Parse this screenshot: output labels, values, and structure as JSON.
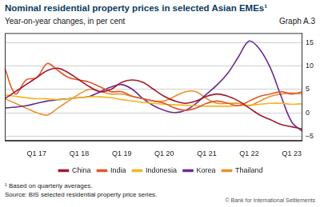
{
  "chart_data": {
    "type": "line",
    "title": "Nominal residential property prices in selected Asian EMEs¹",
    "subtitle": "Year-on-year changes, in per cent",
    "annotations": [
      "Graph A.3",
      "¹ Based on quarterly averages.",
      "Source: BIS selected residential property price series.",
      "© Bank for International Settlements"
    ],
    "categories": [
      null,
      null,
      null,
      "Q1 17",
      null,
      null,
      null,
      "Q1 18",
      null,
      null,
      null,
      "Q1 19",
      null,
      null,
      null,
      "Q1 20",
      null,
      null,
      null,
      "Q1 21",
      null,
      null,
      null,
      "Q1 22",
      null,
      null,
      null,
      "Q1 23",
      null
    ],
    "series": [
      {
        "name": "China",
        "color": "#a3192f",
        "values": [
          3.0,
          4.5,
          6.0,
          7.5,
          9.0,
          9.5,
          8.5,
          7.0,
          5.5,
          4.5,
          5.0,
          6.5,
          7.0,
          6.5,
          5.0,
          3.5,
          2.5,
          2.0,
          2.5,
          3.5,
          4.0,
          3.5,
          2.5,
          1.0,
          -0.5,
          -1.5,
          -2.5,
          -3.0,
          -3.5
        ]
      },
      {
        "name": "India",
        "color": "#e0592a",
        "values": [
          9.5,
          4.0,
          7.0,
          7.5,
          10.5,
          9.0,
          7.5,
          7.0,
          6.5,
          5.5,
          4.5,
          4.5,
          3.5,
          3.0,
          2.5,
          2.0,
          1.0,
          0.5,
          1.0,
          2.0,
          2.5,
          2.0,
          1.5,
          2.5,
          3.5,
          4.0,
          4.5,
          4.0,
          4.5
        ]
      },
      {
        "name": "Indonesia",
        "color": "#f2b51e",
        "values": [
          3.8,
          3.5,
          3.2,
          3.0,
          3.0,
          2.8,
          3.0,
          3.2,
          3.4,
          3.4,
          3.2,
          2.8,
          2.5,
          2.2,
          2.0,
          1.8,
          1.7,
          1.6,
          1.5,
          1.4,
          1.4,
          1.4,
          1.5,
          1.6,
          1.8,
          2.0,
          2.0,
          1.8,
          1.9
        ]
      },
      {
        "name": "Korea",
        "color": "#6b2d8f",
        "values": [
          1.0,
          1.2,
          1.5,
          2.0,
          2.5,
          2.8,
          3.0,
          3.2,
          3.5,
          4.5,
          5.5,
          6.0,
          5.0,
          3.0,
          1.5,
          0.5,
          0.0,
          0.5,
          2.0,
          4.0,
          6.0,
          8.5,
          12.0,
          15.3,
          13.5,
          9.5,
          3.5,
          -2.0,
          -4.0
        ]
      },
      {
        "name": "Thailand",
        "color": "#e8912d",
        "values": [
          3.0,
          2.0,
          1.0,
          0.0,
          -0.5,
          1.0,
          2.5,
          4.0,
          5.0,
          4.5,
          4.0,
          4.0,
          3.5,
          3.0,
          2.5,
          2.5,
          3.5,
          4.5,
          4.5,
          3.0,
          2.0,
          2.0,
          2.0,
          1.5,
          2.5,
          3.5,
          4.0,
          4.2,
          4.0
        ]
      }
    ],
    "ylim": [
      -6,
      17
    ],
    "yticks": [
      {
        "value": -5,
        "label": "–5"
      },
      0,
      5,
      10,
      15
    ],
    "grid": true,
    "legend": "bottom"
  }
}
